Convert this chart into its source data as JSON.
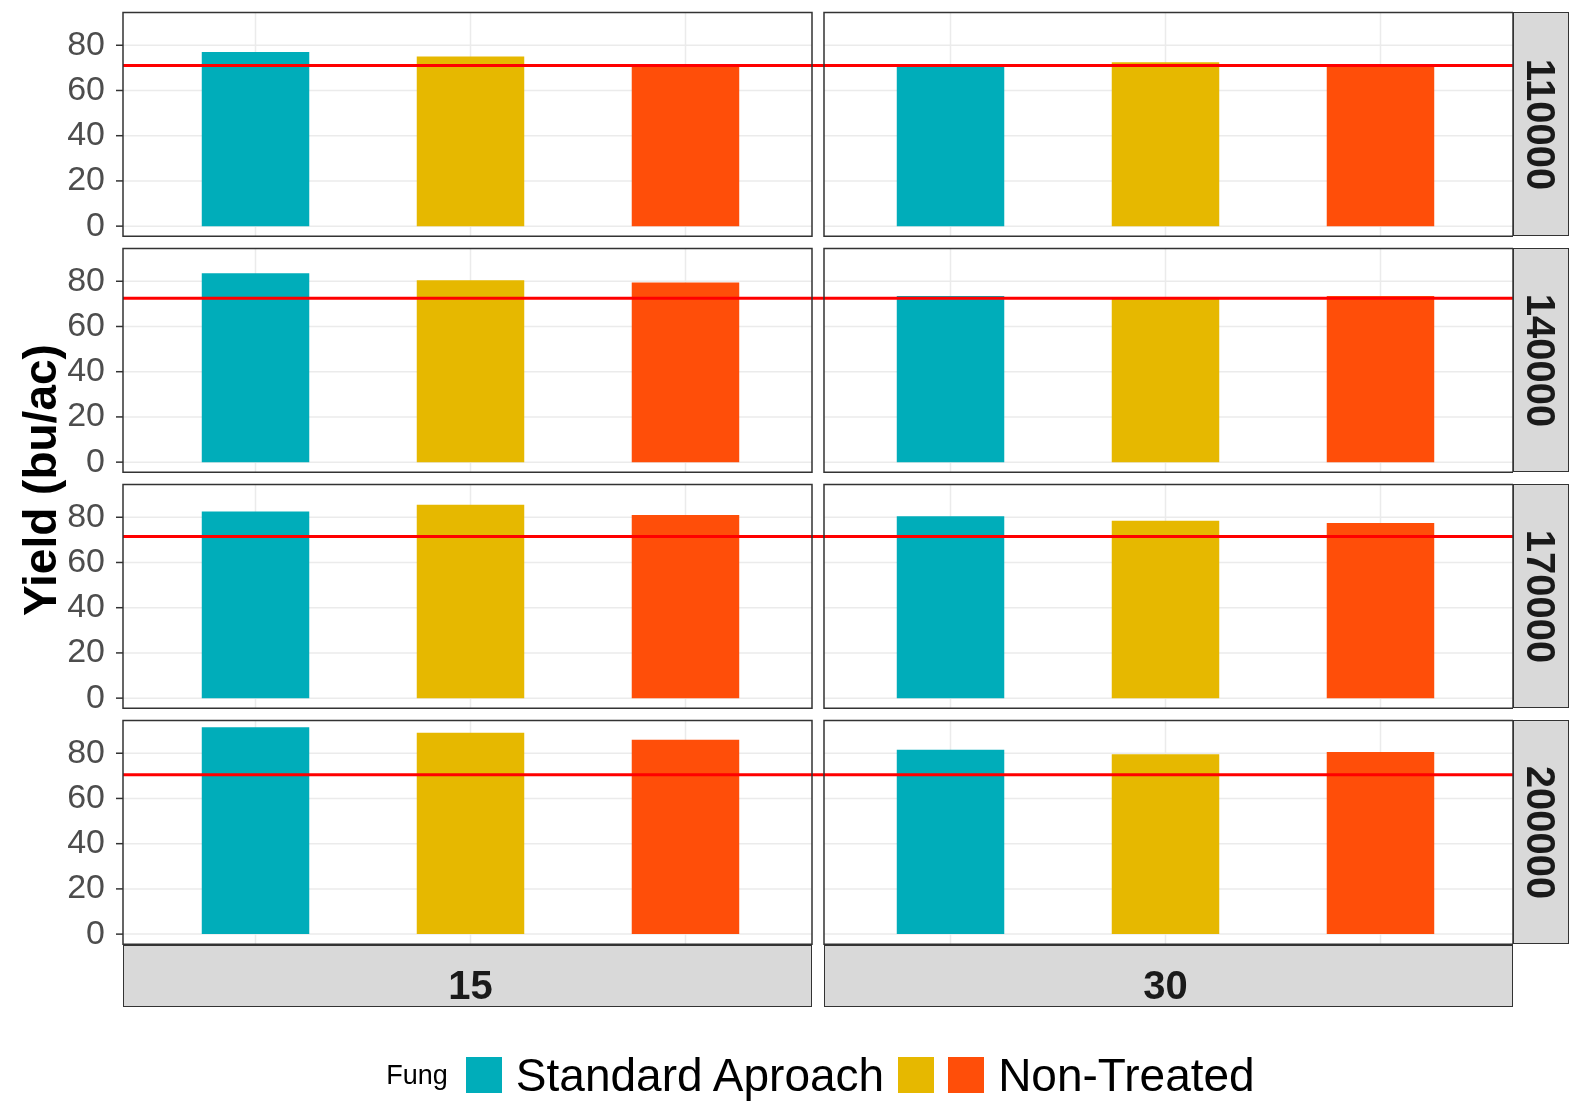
{
  "chart_data": [
    {
      "type": "bar",
      "ylabel": "Yield (bu/ac)",
      "y2label": "110000",
      "legend": "bottom",
      "legend_title": "Fung",
      "categories": [
        null,
        null
      ],
      "series": [
        {
          "name": "Standard Aproach",
          "color": "#00adba",
          "values": [
            77,
            70.5
          ]
        },
        {
          "color": "#e6b800",
          "values": [
            75,
            72.5
          ]
        },
        {
          "name": "Non-Treated",
          "color": "#ff4e09",
          "values": [
            71.5,
            71.5
          ]
        }
      ],
      "ylim": [
        -4.5,
        94.5
      ],
      "yticks": [
        0,
        20,
        40,
        60,
        80
      ],
      "grid": true,
      "tick_labels": "y",
      "ref_lines": [
        {
          "axis": "y",
          "value": 71,
          "color": "#ff0000"
        }
      ]
    },
    {
      "type": "bar",
      "y2label": "140000",
      "categories": [
        null,
        null
      ],
      "series": [
        {
          "color": "#00adba",
          "values": [
            83.5,
            73.5
          ]
        },
        {
          "color": "#e6b800",
          "values": [
            80.5,
            72.5
          ]
        },
        {
          "color": "#ff4e09",
          "values": [
            79.5,
            73.5
          ]
        }
      ],
      "ylim": [
        -4.5,
        94.5
      ],
      "yticks": [
        0,
        20,
        40,
        60,
        80
      ],
      "grid": true,
      "tick_labels": "y",
      "ref_lines": [
        {
          "axis": "y",
          "value": 72.5,
          "color": "#ff0000"
        }
      ]
    },
    {
      "type": "bar",
      "y2label": "170000",
      "categories": [
        null,
        null
      ],
      "series": [
        {
          "color": "#00adba",
          "values": [
            82.5,
            80.5
          ]
        },
        {
          "color": "#e6b800",
          "values": [
            85.5,
            78.5
          ]
        },
        {
          "color": "#ff4e09",
          "values": [
            81,
            77.5
          ]
        }
      ],
      "ylim": [
        -4.5,
        94.5
      ],
      "yticks": [
        0,
        20,
        40,
        60,
        80
      ],
      "grid": true,
      "tick_labels": "y",
      "ref_lines": [
        {
          "axis": "y",
          "value": 71.5,
          "color": "#ff0000"
        }
      ]
    },
    {
      "type": "bar",
      "y2label": "200000",
      "categories": [
        "15",
        "30"
      ],
      "series": [
        {
          "color": "#00adba",
          "values": [
            91.5,
            81.5
          ]
        },
        {
          "color": "#e6b800",
          "values": [
            89,
            79.5
          ]
        },
        {
          "color": "#ff4e09",
          "values": [
            86,
            80.5
          ]
        }
      ],
      "ylim": [
        -4.5,
        94.5
      ],
      "yticks": [
        0,
        20,
        40,
        60,
        80
      ],
      "grid": true,
      "ref_lines": [
        {
          "axis": "y",
          "value": 70.5,
          "color": "#ff0000"
        }
      ]
    }
  ]
}
